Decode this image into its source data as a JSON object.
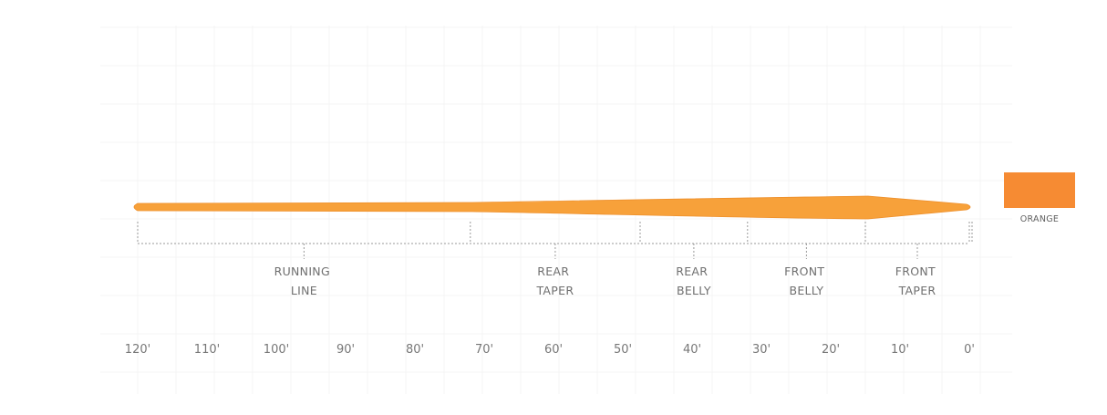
{
  "line_color": "#F7A13A",
  "line_edge_color": "#EE8F2A",
  "swatch": {
    "color": "#F68B33",
    "label": "ORANGE"
  },
  "axis": {
    "unit": "ft",
    "ticks": [
      "120'",
      "110'",
      "100'",
      "90'",
      "80'",
      "70'",
      "60'",
      "50'",
      "40'",
      "30'",
      "20'",
      "10'",
      "0'"
    ]
  },
  "segments": [
    {
      "id": "running-line",
      "lines": [
        "RUNNING",
        "LINE"
      ],
      "from_ft": 120,
      "to_ft": 72
    },
    {
      "id": "rear-taper",
      "lines": [
        "REAR",
        "TAPER"
      ],
      "from_ft": 72,
      "to_ft": 47.5
    },
    {
      "id": "rear-belly",
      "lines": [
        "REAR",
        "BELLY"
      ],
      "from_ft": 47.5,
      "to_ft": 32
    },
    {
      "id": "front-belly",
      "lines": [
        "FRONT",
        "BELLY"
      ],
      "from_ft": 32,
      "to_ft": 15
    },
    {
      "id": "front-taper",
      "lines": [
        "FRONT",
        "TAPER"
      ],
      "from_ft": 15,
      "to_ft": 0
    }
  ]
}
